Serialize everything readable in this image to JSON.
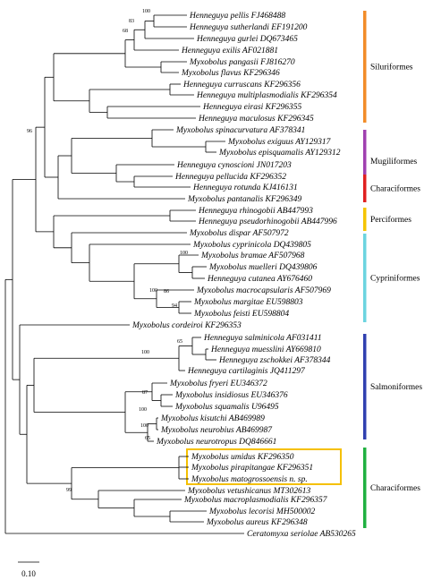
{
  "taxa": [
    "Henneguya pellis FJ468488",
    "Henneguya sutherlandi EF191200",
    "Henneguya gurlei DQ673465",
    "Henneguya exilis AF021881",
    "Myxobolus pangasii FJ816270",
    "Myxobolus flavus KF296346",
    "Henneguya curruscans KF296356",
    "Henneguya multiplasmodialis KF296354",
    "Henneguya eirasi KF296355",
    "Henneguya maculosus KF296345",
    "Myxobolus spinacurvatura AF378341",
    "Myxobolus exiguus AY129317",
    "Myxobolus episquamalis AY129312",
    "Henneguya cynoscioni JN017203",
    "Henneguya pellucida KF296352",
    "Henneguya rotunda KJ416131",
    "Myxobolus pantanalis KF296349",
    "Henneguya rhinogobii AB447993",
    "Henneguya pseudorhinogobii AB447996",
    "Myxobolus dispar AF507972",
    "Myxobolus cyprinicola DQ439805",
    "Myxobolus bramae AF507968",
    "Myxobolus muelleri DQ439806",
    "Henneguya cutanea AY676460",
    "Myxobolus macrocapsularis AF507969",
    "Myxobolus margitae EU598803",
    "Myxobolus feisti EU598804",
    "Myxobolus cordeiroi KF296353",
    "Henneguya salminicola AF031411",
    "Henneguya muesslini AY669810",
    "Henneguya zschokkei AF378344",
    "Henneguya cartilaginis JQ411297",
    "Myxobolus fryeri EU346372",
    "Myxobolus insidiosus EU346376",
    "Myxobolus squamalis U96495",
    "Myxobolus kisutchi AB469989",
    "Myxobolus neurobius AB469987",
    "Myxobolus neurotropus DQ846661",
    "Myxobolus umidus KF296350",
    "Myxobolus pirapitangae KF296351",
    "Myxobolus matogrossoensis n. sp.",
    "Myxobolus vetushicanus MT302613",
    "Myxobolus macroplasmodialis KF296357",
    "Myxobolus lecorisi MH500002",
    "Myxobolus aureus KF296348",
    "Ceratomyxa seriolae AB530265"
  ],
  "bootstrap": [
    100,
    83,
    68,
    96,
    100,
    100,
    86,
    94,
    65,
    100,
    87,
    100,
    100,
    65,
    99
  ],
  "groups": [
    {
      "label": "Siluriformes",
      "color": "#f28c28"
    },
    {
      "label": "Mugiliformes",
      "color": "#a040b0"
    },
    {
      "label": "Characiformes",
      "color": "#e02020"
    },
    {
      "label": "Perciformes",
      "color": "#f5c400"
    },
    {
      "label": "Cypriniformes",
      "color": "#6cd4e0"
    },
    {
      "label": "Salmoniformes",
      "color": "#3040b0"
    },
    {
      "label": "Characiformes",
      "color": "#20b040"
    }
  ],
  "scale_bar": "0.10"
}
